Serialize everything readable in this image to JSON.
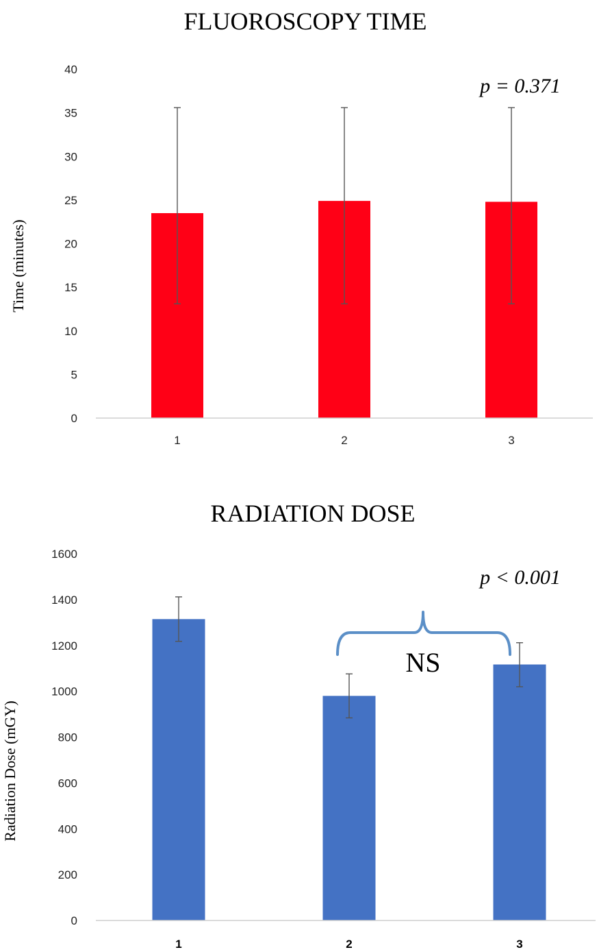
{
  "chart_data": [
    {
      "type": "bar",
      "title": "FLUOROSCOPY TIME",
      "xlabel": "",
      "ylabel": "Time (minutes)",
      "categories": [
        "1",
        "2",
        "3"
      ],
      "values": [
        23.5,
        24.9,
        24.8
      ],
      "error_upper": [
        35.6,
        35.6,
        35.6
      ],
      "error_lower": [
        13.1,
        13.1,
        13.1
      ],
      "ylim": [
        0,
        40
      ],
      "yticks": [
        "0",
        "5",
        "10",
        "15",
        "20",
        "25",
        "30",
        "35",
        "40"
      ],
      "annotation": "p = 0.371",
      "bar_color": "#ff0016",
      "grid": false
    },
    {
      "type": "bar",
      "title": "RADIATION DOSE",
      "xlabel": "",
      "ylabel": "Radiation Dose (mGY)",
      "categories": [
        "1",
        "2",
        "3"
      ],
      "values": [
        1315,
        980,
        1117
      ],
      "error_upper": [
        1412,
        1076,
        1212
      ],
      "error_lower": [
        1218,
        884,
        1020
      ],
      "ylim": [
        0,
        1600
      ],
      "yticks": [
        "0",
        "200",
        "400",
        "600",
        "800",
        "1000",
        "1200",
        "1400",
        "1600"
      ],
      "annotation": "p < 0.001",
      "bracket_label": "NS",
      "bar_color": "#4472c4",
      "bracket_color": "#5b8fc7",
      "grid": false
    }
  ]
}
